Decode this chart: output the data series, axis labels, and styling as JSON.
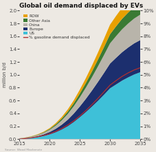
{
  "title": "Global oil demand displaced by EVs",
  "years": [
    2015,
    2016,
    2017,
    2018,
    2019,
    2020,
    2021,
    2022,
    2023,
    2024,
    2025,
    2026,
    2027,
    2028,
    2029,
    2030,
    2031,
    2032,
    2033,
    2034,
    2035
  ],
  "US": [
    0.005,
    0.01,
    0.018,
    0.03,
    0.048,
    0.072,
    0.105,
    0.148,
    0.2,
    0.265,
    0.34,
    0.42,
    0.505,
    0.595,
    0.69,
    0.79,
    0.85,
    0.91,
    0.96,
    1.005,
    1.04
  ],
  "Europe": [
    0.003,
    0.006,
    0.01,
    0.016,
    0.025,
    0.038,
    0.055,
    0.076,
    0.102,
    0.133,
    0.168,
    0.207,
    0.25,
    0.295,
    0.34,
    0.385,
    0.415,
    0.442,
    0.465,
    0.485,
    0.5
  ],
  "China": [
    0.003,
    0.006,
    0.01,
    0.016,
    0.024,
    0.035,
    0.05,
    0.068,
    0.09,
    0.115,
    0.143,
    0.174,
    0.207,
    0.242,
    0.278,
    0.314,
    0.337,
    0.357,
    0.373,
    0.386,
    0.396
  ],
  "Other_Asia": [
    0.001,
    0.002,
    0.004,
    0.006,
    0.009,
    0.013,
    0.019,
    0.026,
    0.035,
    0.046,
    0.059,
    0.073,
    0.089,
    0.106,
    0.124,
    0.142,
    0.153,
    0.163,
    0.171,
    0.178,
    0.184
  ],
  "ROW": [
    0.001,
    0.002,
    0.004,
    0.006,
    0.009,
    0.013,
    0.019,
    0.026,
    0.035,
    0.046,
    0.06,
    0.075,
    0.091,
    0.109,
    0.128,
    0.149,
    0.161,
    0.172,
    0.181,
    0.19,
    0.196
  ],
  "pct_displaced": [
    0.0,
    0.05,
    0.1,
    0.18,
    0.28,
    0.42,
    0.6,
    0.82,
    1.1,
    1.42,
    1.8,
    2.22,
    2.68,
    3.17,
    3.68,
    4.2,
    4.55,
    4.88,
    5.15,
    5.38,
    5.55
  ],
  "colors": {
    "ROW": "#e8a000",
    "Other_Asia": "#3a7a34",
    "China": "#b8b4aa",
    "Europe": "#1c2f6e",
    "US": "#3ec0d8"
  },
  "line_color": "#b03030",
  "ylabel_left": "million b/d",
  "ylim_left": [
    0,
    2.0
  ],
  "ylim_right": [
    0,
    10
  ],
  "yticks_left": [
    0.0,
    0.2,
    0.4,
    0.6,
    0.8,
    1.0,
    1.2,
    1.4,
    1.6,
    1.8,
    2.0
  ],
  "yticks_right": [
    0,
    1,
    2,
    3,
    4,
    5,
    6,
    7,
    8,
    9,
    10
  ],
  "xticks": [
    2015,
    2020,
    2025,
    2030,
    2035
  ],
  "source": "Source: Wood Mackenzie",
  "background_color": "#ede9e3"
}
